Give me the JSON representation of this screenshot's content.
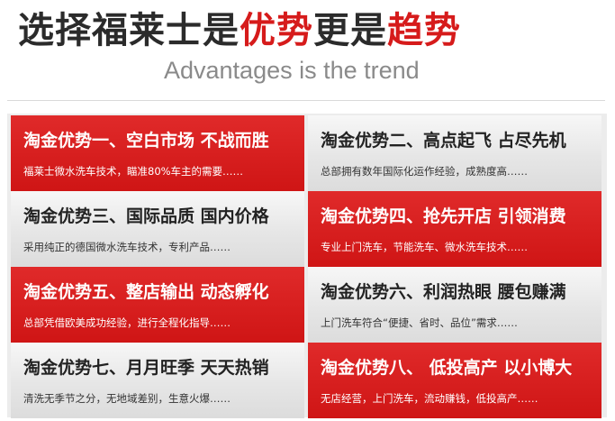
{
  "header": {
    "title_parts": [
      "选择福莱士是",
      "优势",
      "更是",
      "趋势"
    ],
    "subtitle": "Advantages is the trend"
  },
  "colors": {
    "accent_red": "#d61b1b",
    "card_red": "#d81e1e",
    "card_gray": "#e8e8e8",
    "subtitle_gray": "#8a8a8a"
  },
  "advantages": [
    {
      "title": "淘金优势一、空白市场 不战而胜",
      "desc": "福莱士微水洗车技术，瞄准80%车主的需要……",
      "style": "red"
    },
    {
      "title": "淘金优势二、高点起飞 占尽先机",
      "desc": "总部拥有数年国际化运作经验，成熟度高……",
      "style": "gray"
    },
    {
      "title": "淘金优势三、国际品质 国内价格",
      "desc": "采用纯正的德国微水洗车技术，专利产品……",
      "style": "gray"
    },
    {
      "title": "淘金优势四、抢先开店 引领消费",
      "desc": "专业上门洗车，节能洗车、微水洗车技术……",
      "style": "red"
    },
    {
      "title": "淘金优势五、整店输出 动态孵化",
      "desc": "总部凭借欧美成功经验，进行全程化指导……",
      "style": "red"
    },
    {
      "title": "淘金优势六、利润热眼 腰包赚满",
      "desc": "上门洗车符合“便捷、省时、品位”需求……",
      "style": "gray"
    },
    {
      "title": "淘金优势七、月月旺季 天天热销",
      "desc": "清洗无季节之分，无地域差别，生意火爆……",
      "style": "gray"
    },
    {
      "title": "淘金优势八、 低投高产 以小博大",
      "desc": "无店经营，上门洗车，流动赚钱，低投高产……",
      "style": "red"
    }
  ]
}
